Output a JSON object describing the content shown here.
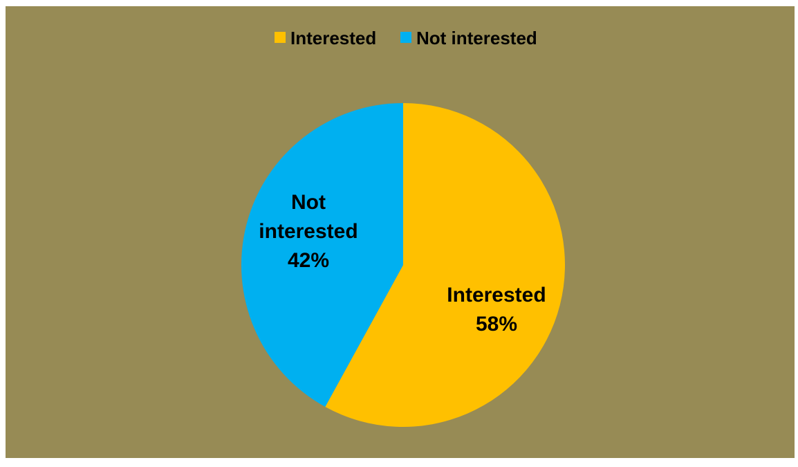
{
  "chart_data": {
    "type": "pie",
    "title": "",
    "background_color": "#978B55",
    "legend_position": "top",
    "series": [
      {
        "categories": [
          "Interested",
          "Not interested"
        ],
        "values": [
          58,
          42
        ],
        "colors": [
          "#FFC000",
          "#00B0F0"
        ]
      }
    ],
    "data_labels": [
      {
        "lines": [
          "Interested",
          "58%"
        ]
      },
      {
        "lines": [
          "Not",
          "interested",
          "42%"
        ]
      }
    ]
  }
}
